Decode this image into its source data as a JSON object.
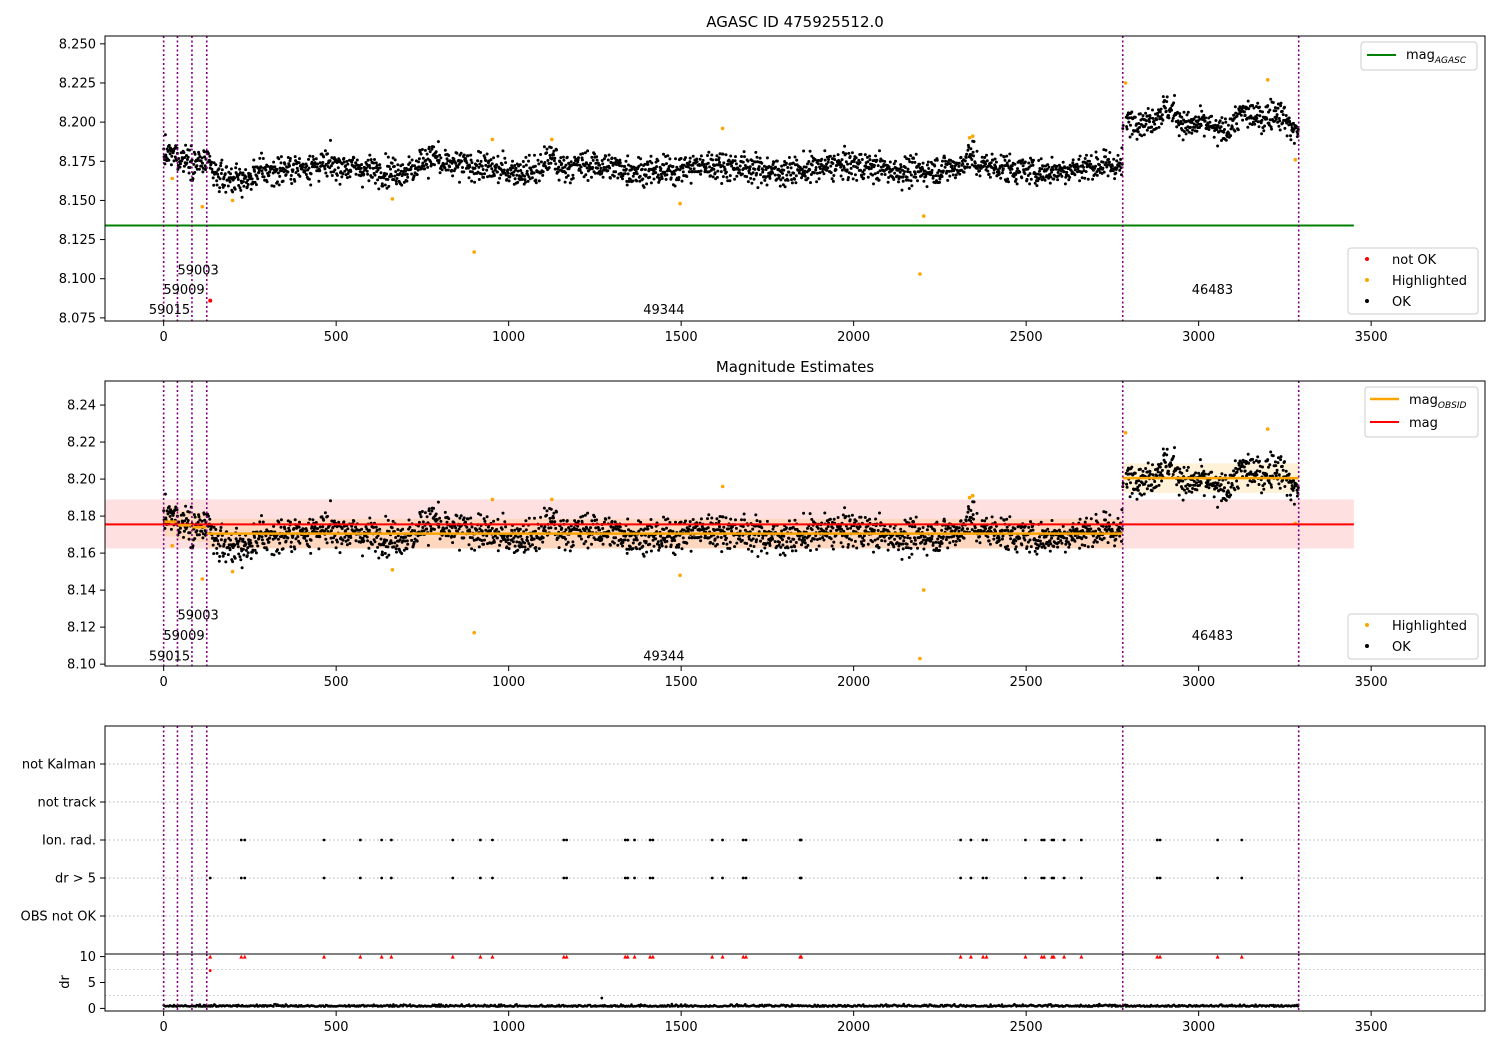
{
  "chart_data": [
    {
      "type": "scatter",
      "title": "AGASC ID 475925512.0",
      "xlim": [
        -170,
        3830
      ],
      "ylim": [
        8.073,
        8.255
      ],
      "xticks": [
        "0",
        "500",
        "1000",
        "1500",
        "2000",
        "2500",
        "3000",
        "3500"
      ],
      "yticks": [
        "8.075",
        "8.100",
        "8.125",
        "8.150",
        "8.175",
        "8.200",
        "8.225",
        "8.250"
      ],
      "legend_top": {
        "placement": "top-right",
        "entries": [
          {
            "label": "mag",
            "sub": "AGASC",
            "color": "#008000"
          }
        ]
      },
      "legend_bottom": {
        "placement": "lower-right",
        "entries": [
          {
            "label": "not OK",
            "color": "#ff0000"
          },
          {
            "label": "Highlighted",
            "color": "#ffa500"
          },
          {
            "label": "OK",
            "color": "#000000"
          }
        ]
      },
      "mag_agasc": 8.134,
      "obsid_labels": [
        {
          "text": "59015",
          "x": 17,
          "y": 8.0805
        },
        {
          "text": "59009",
          "x": 59,
          "y": 8.093
        },
        {
          "text": "59003",
          "x": 100,
          "y": 8.1055
        },
        {
          "text": "49344",
          "x": 1450,
          "y": 8.0805
        },
        {
          "text": "46483",
          "x": 3040,
          "y": 8.093
        }
      ],
      "obsid_bounds": [
        0,
        40,
        82,
        125,
        2780,
        3290
      ]
    },
    {
      "type": "scatter",
      "title": "Magnitude Estimates",
      "xlim": [
        -170,
        3830
      ],
      "ylim": [
        8.099,
        8.253
      ],
      "xticks": [
        "0",
        "500",
        "1000",
        "1500",
        "2000",
        "2500",
        "3000",
        "3500"
      ],
      "yticks": [
        "8.10",
        "8.12",
        "8.14",
        "8.16",
        "8.18",
        "8.20",
        "8.22",
        "8.24"
      ],
      "legend_top": {
        "placement": "top-right",
        "entries": [
          {
            "label": "mag",
            "sub": "OBSID",
            "color": "#ffa500"
          },
          {
            "label": "mag",
            "sub": "",
            "color": "#ff0000"
          }
        ]
      },
      "legend_bottom": {
        "placement": "lower-right",
        "entries": [
          {
            "label": "Highlighted",
            "color": "#ffa500"
          },
          {
            "label": "OK",
            "color": "#000000"
          }
        ]
      },
      "mag_mean": 8.1755,
      "mag_band": [
        8.1625,
        8.189
      ],
      "obsid_segments": [
        {
          "x": [
            0,
            40
          ],
          "mag": 8.177
        },
        {
          "x": [
            40,
            82
          ],
          "mag": 8.175
        },
        {
          "x": [
            82,
            125
          ],
          "mag": 8.174
        },
        {
          "x": [
            125,
            2780
          ],
          "mag": 8.1705
        },
        {
          "x": [
            2780,
            3290
          ],
          "mag": 8.2005
        }
      ],
      "obsid_labels": [
        {
          "text": "59015",
          "x": 17,
          "y": 8.1045
        },
        {
          "text": "59009",
          "x": 59,
          "y": 8.1155
        },
        {
          "text": "59003",
          "x": 100,
          "y": 8.1265
        },
        {
          "text": "49344",
          "x": 1450,
          "y": 8.1045
        },
        {
          "text": "46483",
          "x": 3040,
          "y": 8.1155
        }
      ],
      "obsid_bounds": [
        0,
        40,
        82,
        125,
        2780,
        3290
      ]
    },
    {
      "type": "scatter",
      "title": "",
      "xlim": [
        -170,
        3830
      ],
      "categories": [
        "not Kalman",
        "not track",
        "Ion. rad.",
        "dr > 5",
        "OBS not OK"
      ],
      "flag_points": {
        "Ion. rad.": [
          225,
          235,
          465,
          570,
          632,
          660,
          838,
          918,
          953,
          1160,
          1168,
          1338,
          1345,
          1365,
          1410,
          1418,
          1590,
          1620,
          1680,
          1688,
          1845,
          1848,
          2310,
          2340,
          2375,
          2385,
          2498,
          2545,
          2552,
          2575,
          2580,
          2610,
          2660,
          2880,
          2888,
          3055,
          3125
        ],
        "dr > 5": [
          135,
          225,
          235,
          465,
          570,
          632,
          660,
          838,
          918,
          953,
          1160,
          1168,
          1338,
          1345,
          1365,
          1410,
          1418,
          1590,
          1620,
          1680,
          1688,
          1845,
          1848,
          2310,
          2340,
          2375,
          2385,
          2498,
          2545,
          2552,
          2575,
          2580,
          2610,
          2660,
          2880,
          2888,
          3055,
          3125
        ]
      },
      "obsid_bounds": [
        0,
        40,
        82,
        125,
        2780,
        3290
      ]
    },
    {
      "type": "scatter",
      "title": "",
      "ylabel": "dr",
      "xlim": [
        -170,
        3830
      ],
      "ylim": [
        -0.5,
        10.5
      ],
      "xticks": [
        "0",
        "500",
        "1000",
        "1500",
        "2000",
        "2500",
        "3000",
        "3500"
      ],
      "yticks": [
        "0",
        "5",
        "10"
      ],
      "clipped_markers_x": [
        135,
        225,
        235,
        465,
        570,
        632,
        660,
        838,
        918,
        953,
        1160,
        1168,
        1338,
        1345,
        1365,
        1410,
        1418,
        1590,
        1620,
        1680,
        1688,
        1845,
        1848,
        2310,
        2340,
        2375,
        2385,
        2498,
        2545,
        2552,
        2575,
        2580,
        2610,
        2660,
        2880,
        2888,
        3055,
        3125
      ],
      "dr_typical": 0.35,
      "dr_extra": [
        {
          "x": 1270,
          "y": 2.0
        },
        {
          "x": 135,
          "y": 7.3
        }
      ],
      "obsid_bounds": [
        0,
        40,
        82,
        125,
        2780,
        3290
      ]
    }
  ]
}
